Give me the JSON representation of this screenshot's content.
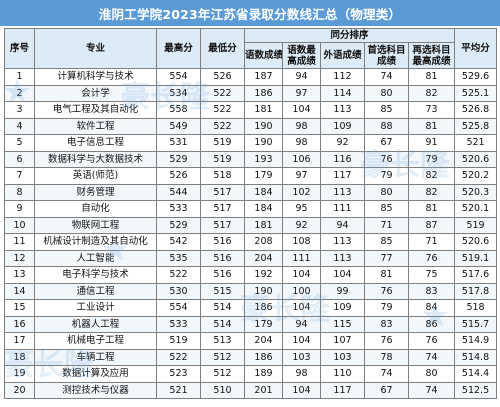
{
  "title": "淮阴工学院2023年江苏省录取分数线汇总（物理类）",
  "headers": {
    "idx": "序号",
    "major": "专业",
    "max": "最高分",
    "min": "最低分",
    "group": "同分排序",
    "chinese": "语数成绩",
    "chinese_max": "语数最高成绩",
    "foreign": "外语成绩",
    "elective": "首选科目成绩",
    "second": "再选科目最高成绩",
    "avg": "平均分"
  },
  "rows": [
    [
      "1",
      "计算机科学与技术",
      "554",
      "526",
      "187",
      "94",
      "112",
      "74",
      "81",
      "529.6"
    ],
    [
      "2",
      "会计学",
      "534",
      "522",
      "186",
      "97",
      "114",
      "80",
      "82",
      "525.1"
    ],
    [
      "3",
      "电气工程及其自动化",
      "558",
      "522",
      "181",
      "104",
      "113",
      "85",
      "73",
      "526.8"
    ],
    [
      "4",
      "软件工程",
      "549",
      "522",
      "190",
      "98",
      "109",
      "88",
      "81",
      "525.8"
    ],
    [
      "5",
      "电子信息工程",
      "531",
      "519",
      "190",
      "98",
      "92",
      "67",
      "91",
      "521"
    ],
    [
      "6",
      "数据科学与大数据技术",
      "529",
      "519",
      "193",
      "106",
      "116",
      "76",
      "79",
      "520.6"
    ],
    [
      "7",
      "英语(师范)",
      "526",
      "518",
      "179",
      "97",
      "117",
      "79",
      "82",
      "520.2"
    ],
    [
      "8",
      "财务管理",
      "544",
      "517",
      "184",
      "102",
      "113",
      "80",
      "82",
      "520.3"
    ],
    [
      "9",
      "自动化",
      "533",
      "517",
      "184",
      "95",
      "111",
      "85",
      "81",
      "520.1"
    ],
    [
      "10",
      "物联网工程",
      "529",
      "517",
      "181",
      "92",
      "94",
      "71",
      "87",
      "519"
    ],
    [
      "11",
      "机械设计制造及其自动化",
      "542",
      "516",
      "208",
      "108",
      "113",
      "85",
      "71",
      "520.6"
    ],
    [
      "12",
      "人工智能",
      "535",
      "516",
      "204",
      "111",
      "113",
      "77",
      "76",
      "519.1"
    ],
    [
      "13",
      "电子科学与技术",
      "522",
      "516",
      "192",
      "104",
      "104",
      "81",
      "75",
      "517.6"
    ],
    [
      "14",
      "通信工程",
      "530",
      "515",
      "190",
      "100",
      "99",
      "76",
      "83",
      "517.8"
    ],
    [
      "15",
      "工业设计",
      "554",
      "514",
      "186",
      "104",
      "109",
      "79",
      "84",
      "518"
    ],
    [
      "16",
      "机器人工程",
      "533",
      "514",
      "179",
      "94",
      "115",
      "83",
      "86",
      "515.7"
    ],
    [
      "17",
      "机械电子工程",
      "519",
      "513",
      "204",
      "104",
      "107",
      "76",
      "76",
      "514.9"
    ],
    [
      "18",
      "车辆工程",
      "522",
      "512",
      "186",
      "103",
      "103",
      "78",
      "74",
      "514.8"
    ],
    [
      "19",
      "数据计算及应用",
      "523",
      "512",
      "189",
      "98",
      "110",
      "74",
      "80",
      "514.4"
    ],
    [
      "20",
      "测控技术与仪器",
      "521",
      "510",
      "201",
      "104",
      "117",
      "67",
      "74",
      "512.5"
    ]
  ],
  "watermark": {
    "text": "豪长隆",
    "color": "#5b9bd5"
  }
}
